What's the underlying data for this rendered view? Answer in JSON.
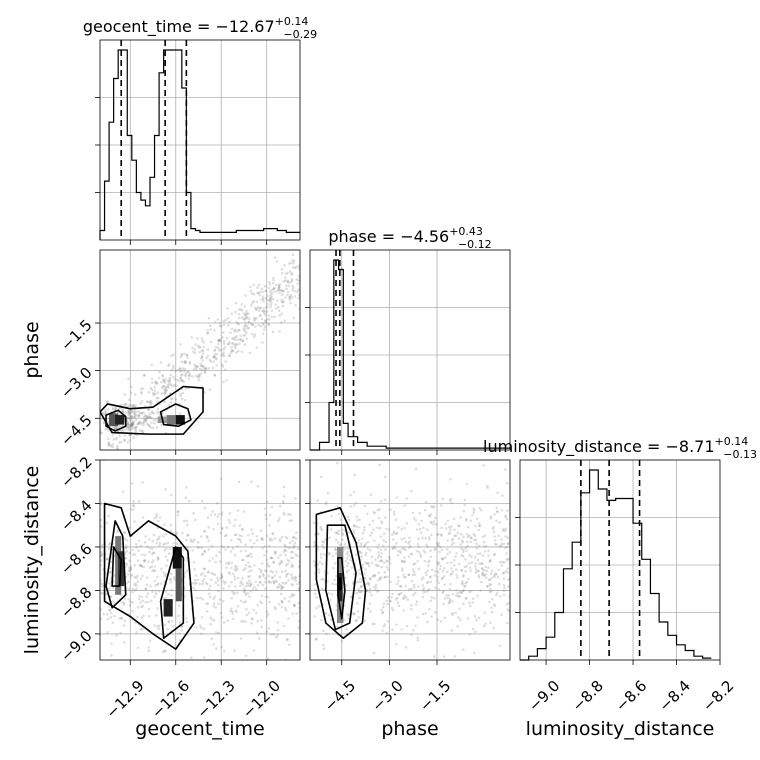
{
  "chart_data": {
    "type": "corner",
    "parameters": [
      "geocent_time",
      "phase",
      "luminosity_distance"
    ],
    "titles": [
      {
        "name": "geocent_time",
        "median": "−12.67",
        "plus": "+0.14",
        "minus": "−0.29"
      },
      {
        "name": "phase",
        "median": "−4.56",
        "plus": "+0.43",
        "minus": "−0.12"
      },
      {
        "name": "luminosity_distance",
        "median": "−8.71",
        "plus": "+0.14",
        "minus": "−0.13"
      }
    ],
    "axes": {
      "geocent_time": {
        "range": [
          -13.1,
          -11.78
        ],
        "ticks": [
          -12.9,
          -12.6,
          -12.3,
          -12.0
        ],
        "tick_labels": [
          "−12.9",
          "−12.6",
          "−12.3",
          "−12.0"
        ]
      },
      "phase": {
        "range": [
          -5.5,
          0.8
        ],
        "ticks": [
          -4.5,
          -3.0,
          -1.5
        ],
        "tick_labels": [
          "−4.5",
          "−3.0",
          "−1.5"
        ]
      },
      "luminosity_distance": {
        "range": [
          -9.12,
          -8.2
        ],
        "ticks": [
          -9.0,
          -8.8,
          -8.6,
          -8.4,
          -8.2
        ],
        "tick_labels": [
          "−9.0",
          "−8.8",
          "−8.6",
          "−8.4",
          "−8.2"
        ]
      }
    },
    "histograms": {
      "geocent_time": {
        "bin_edges": [
          -13.1,
          -13.07,
          -13.04,
          -13.01,
          -12.98,
          -12.95,
          -12.92,
          -12.89,
          -12.86,
          -12.83,
          -12.8,
          -12.77,
          -12.74,
          -12.71,
          -12.68,
          -12.65,
          -12.62,
          -12.59,
          -12.56,
          -12.53,
          -12.5,
          -12.47,
          -12.44,
          -12.41,
          -12.38,
          -12.35,
          -12.32,
          -12.29,
          -12.26,
          -12.23,
          -12.2,
          -12.17,
          -12.14,
          -12.11,
          -12.08,
          -12.05,
          -12.02,
          -11.99,
          -11.96,
          -11.93,
          -11.9,
          -11.87,
          -11.84,
          -11.81,
          -11.78
        ],
        "counts": [
          0.05,
          0.31,
          0.62,
          0.85,
          1.0,
          1.0,
          0.55,
          0.42,
          0.25,
          0.21,
          0.18,
          0.33,
          0.55,
          0.88,
          1.0,
          1.0,
          1.0,
          1.0,
          0.8,
          0.25,
          0.06,
          0.05,
          0.04,
          0.04,
          0.04,
          0.04,
          0.04,
          0.04,
          0.04,
          0.04,
          0.05,
          0.05,
          0.05,
          0.05,
          0.05,
          0.05,
          0.06,
          0.06,
          0.06,
          0.05,
          0.05,
          0.04,
          0.04,
          0.04
        ]
      },
      "phase": {
        "bin_edges": [
          -5.5,
          -5.2,
          -4.9,
          -4.75,
          -4.6,
          -4.45,
          -4.3,
          -4.0,
          -3.7,
          -3.4,
          -3.1,
          -2.8,
          -2.5,
          -2.0,
          -1.5,
          -1.0,
          -0.5,
          0.0,
          0.5,
          0.8
        ],
        "counts": [
          0.0,
          0.04,
          0.25,
          1.0,
          0.95,
          0.14,
          0.07,
          0.04,
          0.02,
          0.02,
          0.01,
          0.01,
          0.01,
          0.01,
          0.01,
          0.01,
          0.01,
          0.01,
          0.01
        ]
      },
      "luminosity_distance": {
        "bin_edges": [
          -9.12,
          -9.08,
          -9.04,
          -9.0,
          -8.96,
          -8.92,
          -8.88,
          -8.84,
          -8.8,
          -8.76,
          -8.72,
          -8.68,
          -8.64,
          -8.6,
          -8.56,
          -8.52,
          -8.48,
          -8.44,
          -8.4,
          -8.36,
          -8.32,
          -8.28,
          -8.24
        ],
        "counts": [
          0.0,
          0.02,
          0.06,
          0.12,
          0.25,
          0.48,
          0.62,
          0.88,
          1.0,
          0.9,
          0.84,
          0.85,
          0.85,
          0.72,
          0.53,
          0.35,
          0.2,
          0.13,
          0.08,
          0.05,
          0.02,
          0.01
        ]
      }
    },
    "quantiles": {
      "geocent_time": [
        -12.96,
        -12.67,
        -12.53
      ],
      "phase": [
        -4.68,
        -4.56,
        -4.13
      ],
      "luminosity_distance": [
        -8.84,
        -8.71,
        -8.57
      ]
    },
    "contours": {
      "geocent_time_vs_phase": [
        {
          "level": "outer",
          "points": [
            [
              -13.1,
              -4.3
            ],
            [
              -13.05,
              -4.05
            ],
            [
              -12.9,
              -4.2
            ],
            [
              -12.75,
              -4.15
            ],
            [
              -12.55,
              -3.5
            ],
            [
              -12.42,
              -3.55
            ],
            [
              -12.42,
              -4.3
            ],
            [
              -12.55,
              -5.0
            ],
            [
              -12.78,
              -5.0
            ],
            [
              -13.02,
              -4.95
            ]
          ]
        },
        {
          "level": "inner-left",
          "points": [
            [
              -13.06,
              -4.4
            ],
            [
              -12.98,
              -4.25
            ],
            [
              -12.93,
              -4.45
            ],
            [
              -12.93,
              -4.75
            ],
            [
              -13.0,
              -4.9
            ],
            [
              -13.06,
              -4.75
            ]
          ]
        },
        {
          "level": "inner-right",
          "points": [
            [
              -12.7,
              -4.3
            ],
            [
              -12.6,
              -4.05
            ],
            [
              -12.52,
              -4.2
            ],
            [
              -12.5,
              -4.55
            ],
            [
              -12.58,
              -4.75
            ],
            [
              -12.68,
              -4.7
            ]
          ]
        }
      ],
      "geocent_time_vs_luminosity_distance": [
        {
          "level": "outer",
          "points": [
            [
              -13.07,
              -8.4
            ],
            [
              -12.96,
              -8.42
            ],
            [
              -12.9,
              -8.55
            ],
            [
              -12.78,
              -8.48
            ],
            [
              -12.6,
              -8.55
            ],
            [
              -12.52,
              -8.62
            ],
            [
              -12.48,
              -8.95
            ],
            [
              -12.6,
              -9.07
            ],
            [
              -12.75,
              -9.0
            ],
            [
              -12.9,
              -8.92
            ],
            [
              -13.07,
              -8.85
            ]
          ]
        },
        {
          "level": "mid",
          "points": [
            [
              -13.0,
              -8.48
            ],
            [
              -12.95,
              -8.55
            ],
            [
              -12.93,
              -8.82
            ],
            [
              -13.02,
              -8.88
            ],
            [
              -13.06,
              -8.78
            ]
          ]
        },
        {
          "level": "mid-right",
          "points": [
            [
              -12.6,
              -8.6
            ],
            [
              -12.55,
              -8.65
            ],
            [
              -12.55,
              -8.95
            ],
            [
              -12.68,
              -9.02
            ],
            [
              -12.7,
              -8.85
            ]
          ]
        },
        {
          "level": "inner",
          "points": [
            [
              -13.01,
              -8.6
            ],
            [
              -12.96,
              -8.66
            ],
            [
              -12.97,
              -8.78
            ],
            [
              -13.02,
              -8.78
            ]
          ]
        }
      ],
      "phase_vs_luminosity_distance": [
        {
          "level": "outer",
          "points": [
            [
              -5.3,
              -8.45
            ],
            [
              -4.55,
              -8.42
            ],
            [
              -4.05,
              -8.58
            ],
            [
              -3.75,
              -8.8
            ],
            [
              -3.85,
              -8.95
            ],
            [
              -4.45,
              -9.02
            ],
            [
              -5.0,
              -8.95
            ],
            [
              -5.3,
              -8.75
            ]
          ]
        },
        {
          "level": "mid",
          "points": [
            [
              -4.95,
              -8.5
            ],
            [
              -4.4,
              -8.5
            ],
            [
              -4.05,
              -8.72
            ],
            [
              -4.25,
              -8.95
            ],
            [
              -4.7,
              -8.98
            ],
            [
              -5.0,
              -8.8
            ]
          ]
        },
        {
          "level": "inner",
          "points": [
            [
              -4.62,
              -8.65
            ],
            [
              -4.5,
              -8.65
            ],
            [
              -4.4,
              -8.8
            ],
            [
              -4.5,
              -8.93
            ],
            [
              -4.62,
              -8.82
            ]
          ]
        }
      ]
    },
    "grid": true
  }
}
